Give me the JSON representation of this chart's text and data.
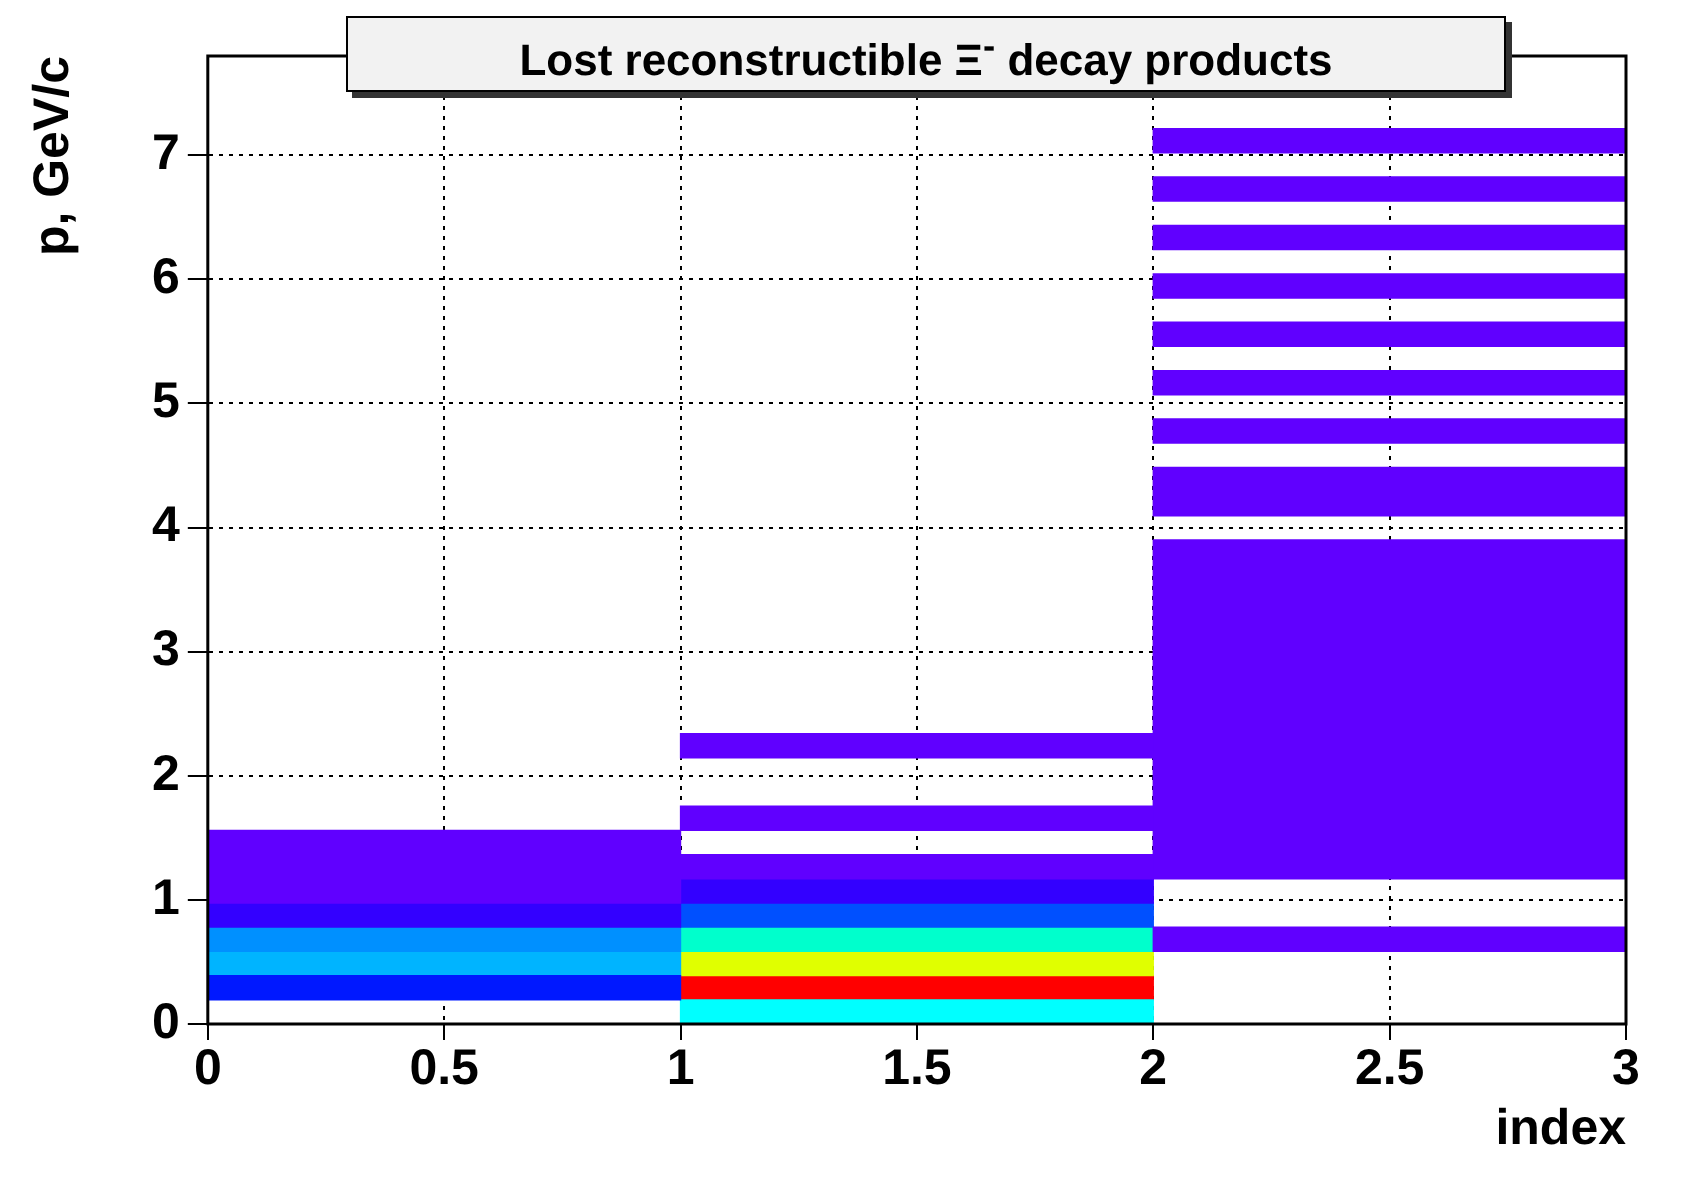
{
  "chart_data": {
    "type": "bar",
    "title": "Lost reconstructible Ξ$^{-}$ decay products",
    "xlabel": "index",
    "ylabel": "p, GeV/c",
    "series": [
      {
        "color": "#6000ff",
        "x": [
          0.5
        ],
        "base": [
          0.975
        ],
        "values": [
          0.585
        ]
      },
      {
        "color": "#6000ff",
        "x": [
          1.5
        ],
        "base": [
          1.17
        ],
        "values": [
          0.195
        ]
      },
      {
        "color": "#6000ff",
        "x": [
          1.5
        ],
        "base": [
          1.56
        ],
        "values": [
          0.195
        ]
      },
      {
        "color": "#6000ff",
        "x": [
          1.5
        ],
        "base": [
          2.145
        ],
        "values": [
          0.195
        ]
      },
      {
        "color": "#6000ff",
        "x": [
          2.5
        ],
        "base": [
          0.585
        ],
        "values": [
          0.195
        ]
      },
      {
        "color": "#6000ff",
        "x": [
          2.5
        ],
        "base": [
          1.17
        ],
        "values": [
          2.73
        ]
      },
      {
        "color": "#6000ff",
        "x": [
          2.5
        ],
        "base": [
          4.095
        ],
        "values": [
          0.39
        ]
      },
      {
        "color": "#6000ff",
        "x": [
          2.5
        ],
        "base": [
          4.68
        ],
        "values": [
          0.195
        ]
      },
      {
        "color": "#6000ff",
        "x": [
          2.5
        ],
        "base": [
          5.07
        ],
        "values": [
          0.195
        ]
      },
      {
        "color": "#6000ff",
        "x": [
          2.5
        ],
        "base": [
          5.46
        ],
        "values": [
          0.195
        ]
      },
      {
        "color": "#6000ff",
        "x": [
          2.5
        ],
        "base": [
          5.85
        ],
        "values": [
          0.195
        ]
      },
      {
        "color": "#6000ff",
        "x": [
          2.5
        ],
        "base": [
          6.24
        ],
        "values": [
          0.195
        ]
      },
      {
        "color": "#6000ff",
        "x": [
          2.5
        ],
        "base": [
          6.63
        ],
        "values": [
          0.195
        ]
      },
      {
        "color": "#6000ff",
        "x": [
          2.5
        ],
        "base": [
          7.02
        ],
        "values": [
          0.195
        ]
      },
      {
        "color": "#3300ff",
        "x": [
          0.5,
          1.5
        ],
        "base": [
          0.78,
          0.975
        ],
        "values": [
          0.195,
          0.195
        ]
      },
      {
        "color": "#0018ff",
        "x": [
          0.5
        ],
        "base": [
          0.195
        ],
        "values": [
          0.195
        ]
      },
      {
        "color": "#0050ff",
        "x": [
          1.5
        ],
        "base": [
          0.78
        ],
        "values": [
          0.195
        ]
      },
      {
        "color": "#0090ff",
        "x": [
          0.5
        ],
        "base": [
          0.585
        ],
        "values": [
          0.195
        ]
      },
      {
        "color": "#00b4ff",
        "x": [
          0.5
        ],
        "base": [
          0.39
        ],
        "values": [
          0.195
        ]
      },
      {
        "color": "#00ffff",
        "x": [
          1.5
        ],
        "base": [
          0
        ],
        "values": [
          0.195
        ]
      },
      {
        "color": "#00ffcc",
        "x": [
          1.5
        ],
        "base": [
          0.585
        ],
        "values": [
          0.195
        ]
      },
      {
        "color": "#e0ff00",
        "x": [
          1.5
        ],
        "base": [
          0.39
        ],
        "values": [
          0.195
        ]
      },
      {
        "color": "#ff0000",
        "x": [
          1.5
        ],
        "base": [
          0.195
        ],
        "values": [
          0.195
        ]
      }
    ],
    "xlim": [
      0,
      3
    ],
    "xticks": [
      0,
      0.5,
      1,
      1.5,
      2,
      2.5,
      3
    ],
    "ylim": [
      0,
      7.8
    ],
    "yticks": [
      0,
      1,
      2,
      3,
      4,
      5,
      6,
      7
    ],
    "grid": true,
    "legend": false
  }
}
